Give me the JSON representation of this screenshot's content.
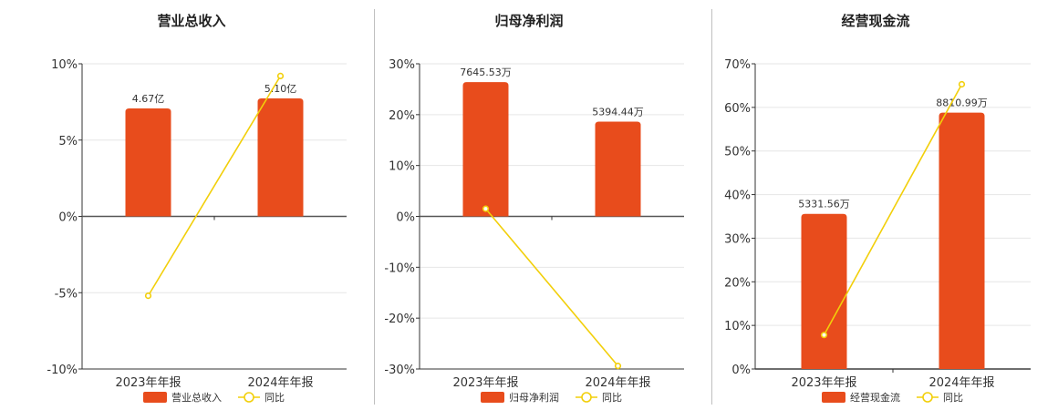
{
  "colors": {
    "bar": "#e84c1c",
    "line": "#f2cf0a",
    "grid": "#e6e6e6",
    "axis": "#333333"
  },
  "legend": {
    "line_label": "同比"
  },
  "chart_data": [
    {
      "type": "bar",
      "title": "营业总收入",
      "categories": [
        "2023年年报",
        "2024年年报"
      ],
      "bar_values": [
        4.67,
        5.1
      ],
      "bar_labels": [
        "4.67亿",
        "5.10亿"
      ],
      "bar_unit": "亿",
      "yoy": [
        -5.2,
        9.2
      ],
      "yticks": [
        "10%",
        "5%",
        "0%",
        "-5%",
        "-10%"
      ],
      "ylim": [
        -10,
        10
      ],
      "series": [
        {
          "name": "营业总收入"
        },
        {
          "name": "同比"
        }
      ]
    },
    {
      "type": "bar",
      "title": "归母净利润",
      "categories": [
        "2023年年报",
        "2024年年报"
      ],
      "bar_values": [
        7645.53,
        5394.44
      ],
      "bar_labels": [
        "7645.53万",
        "5394.44万"
      ],
      "bar_unit": "万",
      "yoy": [
        1.5,
        -29.4
      ],
      "yticks": [
        "30%",
        "20%",
        "10%",
        "0%",
        "-10%",
        "-20%",
        "-30%"
      ],
      "ylim": [
        -30,
        30
      ],
      "series": [
        {
          "name": "归母净利润"
        },
        {
          "name": "同比"
        }
      ]
    },
    {
      "type": "bar",
      "title": "经营现金流",
      "categories": [
        "2023年年报",
        "2024年年报"
      ],
      "bar_values": [
        5331.56,
        8810.99
      ],
      "bar_labels": [
        "5331.56万",
        "8810.99万"
      ],
      "bar_unit": "万",
      "yoy": [
        7.8,
        65.3
      ],
      "yticks": [
        "70%",
        "60%",
        "50%",
        "40%",
        "30%",
        "20%",
        "10%",
        "0%"
      ],
      "ylim": [
        0,
        70
      ],
      "series": [
        {
          "name": "经营现金流"
        },
        {
          "name": "同比"
        }
      ]
    }
  ]
}
